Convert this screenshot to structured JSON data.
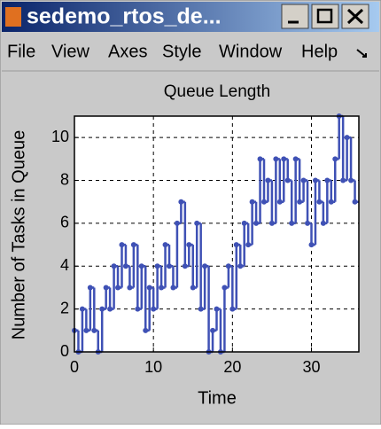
{
  "window": {
    "title": "sedemo_rtos_de...",
    "menu": [
      "File",
      "View",
      "Axes",
      "Style",
      "Window",
      "Help"
    ]
  },
  "chart_data": {
    "type": "stairs",
    "title": "Queue Length",
    "x_label": "Time",
    "y_label": "Number of Tasks in Queue",
    "color": "#3f51b5",
    "grid": true,
    "xlim": [
      0,
      36
    ],
    "ylim": [
      0,
      11
    ],
    "xticks": [
      0,
      10,
      20,
      30
    ],
    "yticks": [
      0,
      2,
      4,
      6,
      8,
      10
    ],
    "x": [
      0,
      0.5,
      1,
      1.5,
      2,
      2.5,
      3,
      3.5,
      4,
      4.5,
      5,
      5.5,
      6,
      6.5,
      7,
      7.5,
      8,
      8.5,
      9,
      9.5,
      10,
      10.5,
      11,
      11.5,
      12,
      12.5,
      13,
      13.5,
      14,
      14.5,
      15,
      15.5,
      16,
      16.5,
      17,
      17.5,
      18,
      18.5,
      19,
      19.5,
      20,
      20.5,
      21,
      21.5,
      22,
      22.5,
      23,
      23.5,
      24,
      24.5,
      25,
      25.5,
      26,
      26.5,
      27,
      27.5,
      28,
      28.5,
      29,
      29.5,
      30,
      30.5,
      31,
      31.5,
      32,
      32.5,
      33,
      33.5,
      34,
      34.5,
      35,
      35.5
    ],
    "values": [
      1,
      0,
      2,
      1,
      3,
      1,
      0,
      2,
      3,
      2,
      4,
      3,
      5,
      4,
      3,
      5,
      2,
      4,
      1,
      3,
      2,
      4,
      3,
      5,
      4,
      3,
      6,
      7,
      4,
      5,
      3,
      6,
      2,
      4,
      0,
      1,
      2,
      0,
      3,
      4,
      2,
      5,
      4,
      6,
      5,
      7,
      6,
      9,
      7,
      8,
      6,
      9,
      7,
      9,
      8,
      6,
      9,
      7,
      8,
      6,
      5,
      8,
      7,
      6,
      8,
      7,
      9,
      11,
      8,
      10,
      8,
      7
    ]
  }
}
